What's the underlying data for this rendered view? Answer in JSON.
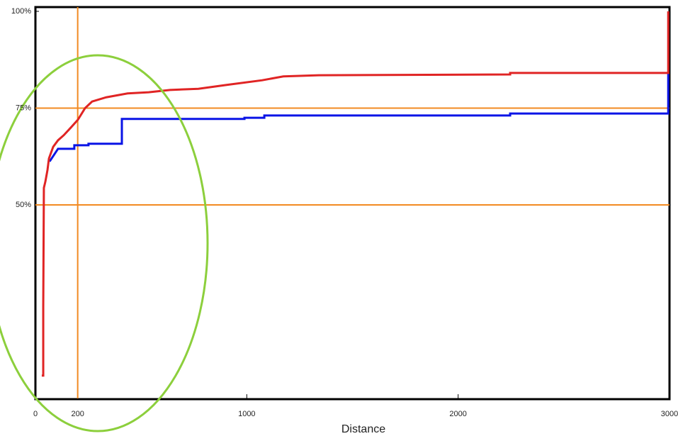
{
  "chart_data": {
    "type": "line",
    "x_label": "Distance",
    "xlim": [
      0,
      3000
    ],
    "ylim": [
      0,
      100
    ],
    "xticks": [
      0,
      200,
      1000,
      2000,
      3000
    ],
    "yticks": [
      {
        "value": 50,
        "label": "50%"
      },
      {
        "value": 75,
        "label": "75%"
      },
      {
        "value": 100,
        "label": "100%"
      }
    ],
    "hlines": [
      50,
      75
    ],
    "vlines": [
      200
    ],
    "ref_color": "#f28a22",
    "series": [
      {
        "color": "#e02424",
        "x": [
          30,
          37,
          37,
          40,
          47,
          57,
          64,
          84,
          107,
          134,
          168,
          201,
          235,
          268,
          335,
          436,
          536,
          637,
          771,
          905,
          1073,
          1173,
          1341,
          2246,
          2246,
          2994,
          2994
        ],
        "values": [
          5.9,
          5.9,
          23.8,
          54.4,
          56,
          59,
          62,
          65,
          66.7,
          68,
          70,
          72,
          75,
          76.7,
          77.8,
          78.8,
          79.1,
          79.7,
          80,
          81,
          82.2,
          83.2,
          83.5,
          83.7,
          84.1,
          84.1,
          100
        ]
      },
      {
        "color": "#0a14e6",
        "x": [
          67,
          107,
          184,
          184,
          251,
          251,
          409,
          409,
          989,
          989,
          1083,
          1083,
          2246,
          2246,
          2994,
          2994
        ],
        "values": [
          61.2,
          64.5,
          64.5,
          65.4,
          65.4,
          65.8,
          65.8,
          72.2,
          72.2,
          72.5,
          72.5,
          73.1,
          73.1,
          73.6,
          73.6,
          84
        ]
      }
    ]
  }
}
